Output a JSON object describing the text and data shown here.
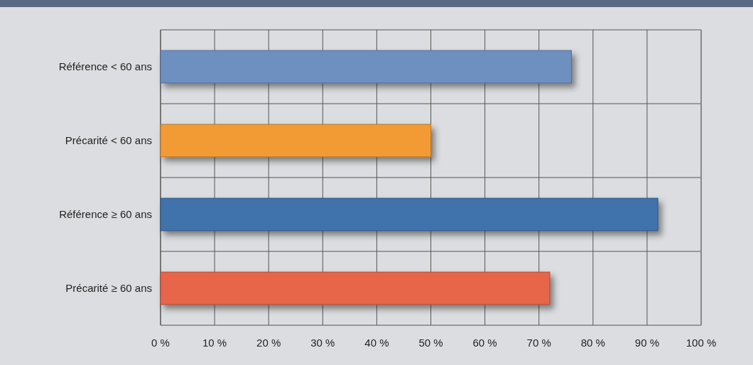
{
  "chart_data": {
    "type": "bar",
    "orientation": "horizontal",
    "categories": [
      "Référence < 60 ans",
      "Précarité < 60 ans",
      "Référence ≥ 60 ans",
      "Précarité ≥ 60 ans"
    ],
    "values": [
      76,
      50,
      92,
      72
    ],
    "colors": [
      "#6e90c0",
      "#f29b36",
      "#3f72ab",
      "#e7654a"
    ],
    "xlim": [
      0,
      100
    ],
    "xticks": [
      {
        "value": 0,
        "label": "0 %"
      },
      {
        "value": 10,
        "label": "10 %"
      },
      {
        "value": 20,
        "label": "20 %"
      },
      {
        "value": 30,
        "label": "30 %"
      },
      {
        "value": 40,
        "label": "40 %"
      },
      {
        "value": 50,
        "label": "50 %"
      },
      {
        "value": 60,
        "label": "60 %"
      },
      {
        "value": 70,
        "label": "70 %"
      },
      {
        "value": 80,
        "label": "80 %"
      },
      {
        "value": 90,
        "label": "90 %"
      },
      {
        "value": 100,
        "label": "100 %"
      }
    ],
    "grid": true
  }
}
